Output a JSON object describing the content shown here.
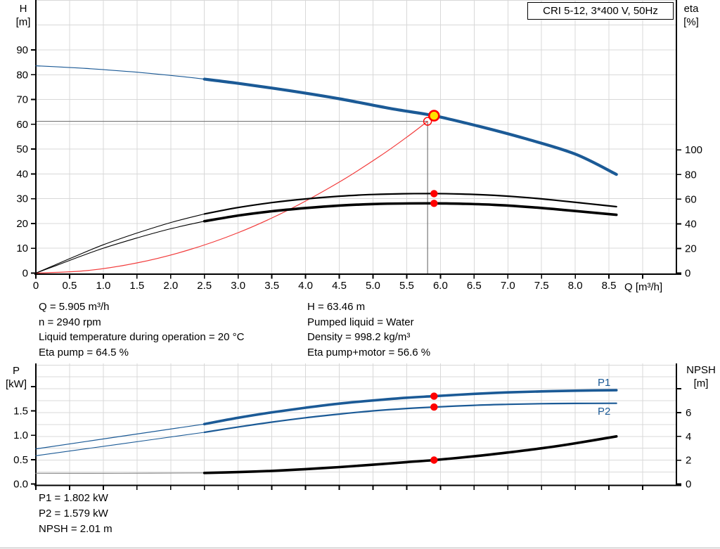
{
  "title_box": {
    "label": "CRI 5-12, 3*400 V, 50Hz"
  },
  "colors": {
    "curve_blue": "#1b5a96",
    "curve_black": "#000000",
    "system_red": "#f23b3b",
    "marker_red": "#ff0000",
    "duty_yellow": "#ffe100",
    "crosshair_gray": "#787878",
    "grid_gray": "#d8d8d8",
    "axis_black": "#000000"
  },
  "annotations": {
    "info_left": [
      "Q = 5.905 m³/h",
      "n = 2940 rpm",
      "Liquid temperature during operation = 20 °C",
      "Eta pump = 64.5 %"
    ],
    "info_right": [
      "H = 63.46 m",
      "Pumped liquid = Water",
      "Density = 998.2 kg/m³",
      "Eta pump+motor = 56.6 %"
    ],
    "results": [
      "P1 = 1.802 kW",
      "P2 = 1.579 kW",
      "NPSH = 2.01 m"
    ]
  },
  "chart_data": [
    {
      "type": "line",
      "title": "Pump performance curve (QH and efficiency)",
      "x": {
        "label": "Q [m³/h]",
        "min": 0,
        "max": 9.5,
        "ticks": [
          [
            0,
            "0"
          ],
          [
            0.5,
            "0.5"
          ],
          [
            1,
            "1.0"
          ],
          [
            1.5,
            "1.5"
          ],
          [
            2,
            "2.0"
          ],
          [
            2.5,
            "2.5"
          ],
          [
            3,
            "3.0"
          ],
          [
            3.5,
            "3.5"
          ],
          [
            4,
            "4.0"
          ],
          [
            4.5,
            "4.5"
          ],
          [
            5,
            "5.0"
          ],
          [
            5.5,
            "5.5"
          ],
          [
            6,
            "6.0"
          ],
          [
            6.5,
            "6.5"
          ],
          [
            7,
            "7.0"
          ],
          [
            7.5,
            "7.5"
          ],
          [
            8,
            "8.0"
          ],
          [
            8.5,
            "8.5"
          ],
          [
            9,
            ""
          ]
        ]
      },
      "y_left": {
        "title": "H",
        "unit": "[m]",
        "min": 0,
        "max": 110,
        "grid": true,
        "ticks": [
          [
            0,
            "0"
          ],
          [
            10,
            "10"
          ],
          [
            20,
            "20"
          ],
          [
            30,
            "30"
          ],
          [
            40,
            "40"
          ],
          [
            50,
            "50"
          ],
          [
            60,
            "60"
          ],
          [
            70,
            "70"
          ],
          [
            80,
            "80"
          ],
          [
            90,
            "90"
          ]
        ]
      },
      "y_right": {
        "title": "eta",
        "unit": "[%]",
        "min": 0,
        "max": 120,
        "ticks": [
          [
            0,
            "0"
          ],
          [
            20,
            "20"
          ],
          [
            40,
            "40"
          ],
          [
            60,
            "60"
          ],
          [
            80,
            "80"
          ],
          [
            100,
            "100"
          ]
        ]
      },
      "series": [
        {
          "name": "system-curve",
          "scale": "H",
          "color": "#f23b3b",
          "width": 1.2,
          "points": [
            [
              0,
              0
            ],
            [
              0.75,
              1.0
            ],
            [
              1.5,
              4.1
            ],
            [
              2.25,
              9.2
            ],
            [
              3,
              16.3
            ],
            [
              3.75,
              25.5
            ],
            [
              4.5,
              36.7
            ],
            [
              5.1,
              47.1
            ],
            [
              5.5,
              54.8
            ],
            [
              5.81,
              61.2
            ]
          ]
        },
        {
          "name": "eta-pump",
          "scale": "eta",
          "color": "#000000",
          "width": 2.2,
          "thin_until": 2.5,
          "thin_width": 1.1,
          "points": [
            [
              0,
              0
            ],
            [
              0.3,
              7
            ],
            [
              0.6,
              14
            ],
            [
              1,
              23
            ],
            [
              1.5,
              32.5
            ],
            [
              2,
              41
            ],
            [
              2.5,
              48
            ],
            [
              3,
              53.2
            ],
            [
              3.5,
              57.2
            ],
            [
              4,
              60.2
            ],
            [
              4.5,
              62.4
            ],
            [
              5,
              63.8
            ],
            [
              5.45,
              64.4
            ],
            [
              5.905,
              64.5
            ],
            [
              6.3,
              64.2
            ],
            [
              6.8,
              63.1
            ],
            [
              7.3,
              61.2
            ],
            [
              7.8,
              58.6
            ],
            [
              8.2,
              56.3
            ],
            [
              8.61,
              53.9
            ]
          ]
        },
        {
          "name": "eta-pump-motor",
          "scale": "eta",
          "color": "#000000",
          "width": 3.6,
          "thin_until": 2.5,
          "thin_width": 1.1,
          "points": [
            [
              0,
              0
            ],
            [
              0.3,
              6.1
            ],
            [
              0.6,
              12.3
            ],
            [
              1,
              20.2
            ],
            [
              1.5,
              28.5
            ],
            [
              2,
              36
            ],
            [
              2.5,
              42.1
            ],
            [
              3,
              46.7
            ],
            [
              3.5,
              50.2
            ],
            [
              4,
              52.8
            ],
            [
              4.5,
              54.8
            ],
            [
              5,
              56
            ],
            [
              5.45,
              56.5
            ],
            [
              5.905,
              56.6
            ],
            [
              6.3,
              56.3
            ],
            [
              6.8,
              55.4
            ],
            [
              7.3,
              53.7
            ],
            [
              7.8,
              51.4
            ],
            [
              8.2,
              49.4
            ],
            [
              8.61,
              47.3
            ]
          ]
        },
        {
          "name": "head",
          "scale": "H",
          "color": "#1b5a96",
          "width": 4.2,
          "thin_until": 2.5,
          "thin_width": 1.2,
          "points": [
            [
              0,
              83.6
            ],
            [
              0.75,
              82.5
            ],
            [
              1.5,
              81.0
            ],
            [
              2.25,
              79.0
            ],
            [
              2.5,
              78.2
            ],
            [
              3,
              76.5
            ],
            [
              3.75,
              73.6
            ],
            [
              4.5,
              70.3
            ],
            [
              5.25,
              66.4
            ],
            [
              5.905,
              63.46
            ],
            [
              6.6,
              59.0
            ],
            [
              7.25,
              54.3
            ],
            [
              8,
              48.0
            ],
            [
              8.61,
              39.8
            ]
          ]
        }
      ],
      "crosshair": {
        "q": 5.81,
        "scale": "H",
        "v": 61.2,
        "color": "#787878"
      },
      "markers": [
        {
          "name": "eta-pump-duty-dot",
          "q": 5.905,
          "scale": "eta",
          "v": 64.5,
          "r": 5.2,
          "fill": "#ff0000",
          "interactable": false
        },
        {
          "name": "eta-pump-motor-duty-dot",
          "q": 5.905,
          "scale": "eta",
          "v": 56.6,
          "r": 5.2,
          "fill": "#ff0000",
          "interactable": false
        },
        {
          "name": "requested-duty-point-ring",
          "q": 5.81,
          "scale": "H",
          "v": 61.2,
          "r": 5.5,
          "fill": "none",
          "stroke": "#ff0000",
          "stroke_width": 1.4,
          "interactable": true
        },
        {
          "name": "actual-duty-point",
          "q": 5.905,
          "scale": "H",
          "v": 63.46,
          "r": 7,
          "fill": "#ffe100",
          "stroke": "#ff0000",
          "stroke_width": 2.6,
          "interactable": true
        }
      ]
    },
    {
      "type": "line",
      "title": "Power and NPSH curves",
      "x": {
        "label": "",
        "min": 0,
        "max": 9.5,
        "ticks": [
          [
            0,
            ""
          ],
          [
            0.5,
            ""
          ],
          [
            1,
            ""
          ],
          [
            1.5,
            ""
          ],
          [
            2,
            ""
          ],
          [
            2.5,
            ""
          ],
          [
            3,
            ""
          ],
          [
            3.5,
            ""
          ],
          [
            4,
            ""
          ],
          [
            4.5,
            ""
          ],
          [
            5,
            ""
          ],
          [
            5.5,
            ""
          ],
          [
            6,
            ""
          ],
          [
            6.5,
            ""
          ],
          [
            7,
            ""
          ],
          [
            7.5,
            ""
          ],
          [
            8,
            ""
          ],
          [
            8.5,
            ""
          ],
          [
            9,
            ""
          ]
        ]
      },
      "y_left": {
        "title": "P",
        "unit": "[kW]",
        "min": 0,
        "max": 2.5,
        "grid": true,
        "ticks": [
          [
            0,
            "0.0"
          ],
          [
            0.5,
            "0.5"
          ],
          [
            1,
            "1.0"
          ],
          [
            1.5,
            "1.5"
          ],
          [
            2,
            ""
          ]
        ]
      },
      "y_right": {
        "title": "NPSH",
        "unit": "[m]",
        "min": 0,
        "max": 10,
        "ticks": [
          [
            0,
            "0"
          ],
          [
            2,
            "2"
          ],
          [
            4,
            "4"
          ],
          [
            6,
            "6"
          ],
          [
            8,
            ""
          ]
        ]
      },
      "curve_labels": {
        "p1": "P1",
        "p2": "P2"
      },
      "series": [
        {
          "name": "p1",
          "scale": "P",
          "color": "#1b5a96",
          "width": 3.6,
          "thin_until": 2.5,
          "thin_width": 1.2,
          "points": [
            [
              0,
              0.72
            ],
            [
              1.25,
              0.975
            ],
            [
              2.5,
              1.23
            ],
            [
              3,
              1.36
            ],
            [
              3.5,
              1.47
            ],
            [
              4,
              1.565
            ],
            [
              4.5,
              1.65
            ],
            [
              5,
              1.715
            ],
            [
              5.5,
              1.77
            ],
            [
              5.905,
              1.802
            ],
            [
              6.5,
              1.85
            ],
            [
              7,
              1.88
            ],
            [
              7.5,
              1.9
            ],
            [
              8,
              1.915
            ],
            [
              8.61,
              1.925
            ]
          ]
        },
        {
          "name": "p2",
          "scale": "P",
          "color": "#1b5a96",
          "width": 2.2,
          "thin_until": 2.5,
          "thin_width": 1.1,
          "points": [
            [
              0,
              0.58
            ],
            [
              1.25,
              0.82
            ],
            [
              2.5,
              1.06
            ],
            [
              3,
              1.17
            ],
            [
              3.5,
              1.27
            ],
            [
              4,
              1.36
            ],
            [
              4.5,
              1.435
            ],
            [
              5,
              1.5
            ],
            [
              5.5,
              1.55
            ],
            [
              5.905,
              1.579
            ],
            [
              6.5,
              1.615
            ],
            [
              7,
              1.635
            ],
            [
              7.5,
              1.648
            ],
            [
              8,
              1.653
            ],
            [
              8.61,
              1.657
            ]
          ]
        },
        {
          "name": "npsh",
          "scale": "N",
          "color": "#000000",
          "width": 3.6,
          "thin_until": 2.5,
          "thin_width": 1.2,
          "thin_color": "#8a8a8a",
          "points": [
            [
              0,
              0.9
            ],
            [
              1.25,
              0.9
            ],
            [
              2.5,
              0.93
            ],
            [
              3,
              1.0
            ],
            [
              3.5,
              1.1
            ],
            [
              4,
              1.25
            ],
            [
              4.5,
              1.42
            ],
            [
              5,
              1.62
            ],
            [
              5.5,
              1.84
            ],
            [
              5.905,
              2.01
            ],
            [
              6.5,
              2.33
            ],
            [
              7,
              2.65
            ],
            [
              7.5,
              3.0
            ],
            [
              8,
              3.42
            ],
            [
              8.61,
              4.0
            ]
          ]
        }
      ],
      "markers": [
        {
          "name": "p1-duty-dot",
          "q": 5.905,
          "scale": "P",
          "v": 1.802,
          "r": 5.2,
          "fill": "#ff0000",
          "interactable": false
        },
        {
          "name": "p2-duty-dot",
          "q": 5.905,
          "scale": "P",
          "v": 1.579,
          "r": 5.2,
          "fill": "#ff0000",
          "interactable": false
        },
        {
          "name": "npsh-duty-dot",
          "q": 5.905,
          "scale": "N",
          "v": 2.01,
          "r": 5.2,
          "fill": "#ff0000",
          "interactable": false
        }
      ]
    }
  ]
}
